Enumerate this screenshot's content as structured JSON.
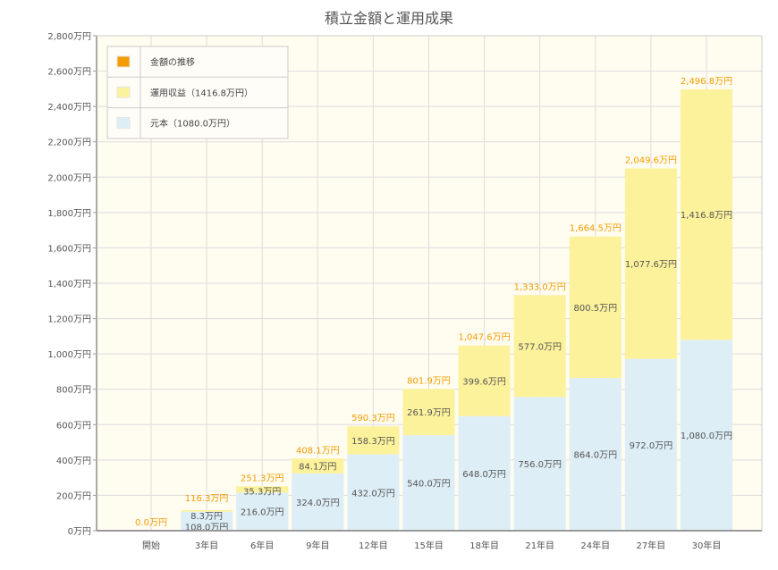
{
  "chart_data": {
    "type": "bar",
    "stacked": true,
    "title": "積立金額と運用成果",
    "categories": [
      "開始",
      "3年目",
      "6年目",
      "9年目",
      "12年目",
      "15年目",
      "18年目",
      "21年目",
      "24年目",
      "27年目",
      "30年目"
    ],
    "series": [
      {
        "name": "元本（1080.0万円）",
        "color": "#ddeef6",
        "values": [
          0,
          108.0,
          216.0,
          324.0,
          432.0,
          540.0,
          648.0,
          756.0,
          864.0,
          972.0,
          1080.0
        ],
        "labels": [
          "",
          "108.0万円",
          "216.0万円",
          "324.0万円",
          "432.0万円",
          "540.0万円",
          "648.0万円",
          "756.0万円",
          "864.0万円",
          "972.0万円",
          "1,080.0万円"
        ]
      },
      {
        "name": "運用収益（1416.8万円）",
        "color": "#fdf29c",
        "values": [
          0,
          8.3,
          35.3,
          84.1,
          158.3,
          261.9,
          399.6,
          577.0,
          800.5,
          1077.6,
          1416.8
        ],
        "labels": [
          "",
          "8.3万円",
          "35.3万円",
          "84.1万円",
          "158.3万円",
          "261.9万円",
          "399.6万円",
          "577.0万円",
          "800.5万円",
          "1,077.6万円",
          "1,416.8万円"
        ]
      }
    ],
    "totals": {
      "name": "金額の推移",
      "color": "#f59c00",
      "values": [
        0.0,
        116.3,
        251.3,
        408.1,
        590.3,
        801.9,
        1047.6,
        1333.0,
        1664.5,
        2049.6,
        2496.8
      ],
      "labels": [
        "0.0万円",
        "116.3万円",
        "251.3万円",
        "408.1万円",
        "590.3万円",
        "801.9万円",
        "1,047.6万円",
        "1,333.0万円",
        "1,664.5万円",
        "2,049.6万円",
        "2,496.8万円"
      ]
    },
    "ylim": [
      0,
      2800
    ],
    "yticks": [
      0,
      200,
      400,
      600,
      800,
      1000,
      1200,
      1400,
      1600,
      1800,
      2000,
      2200,
      2400,
      2600,
      2800
    ],
    "ytick_labels": [
      "0万円",
      "200万円",
      "400万円",
      "600万円",
      "800万円",
      "1,000万円",
      "1,200万円",
      "1,400万円",
      "1,600万円",
      "1,800万円",
      "2,000万円",
      "2,200万円",
      "2,400万円",
      "2,600万円",
      "2,800万円"
    ],
    "grid": true,
    "legend_placement": "top-left",
    "legend": [
      "金額の推移",
      "運用収益（1416.8万円）",
      "元本（1080.0万円）"
    ]
  }
}
